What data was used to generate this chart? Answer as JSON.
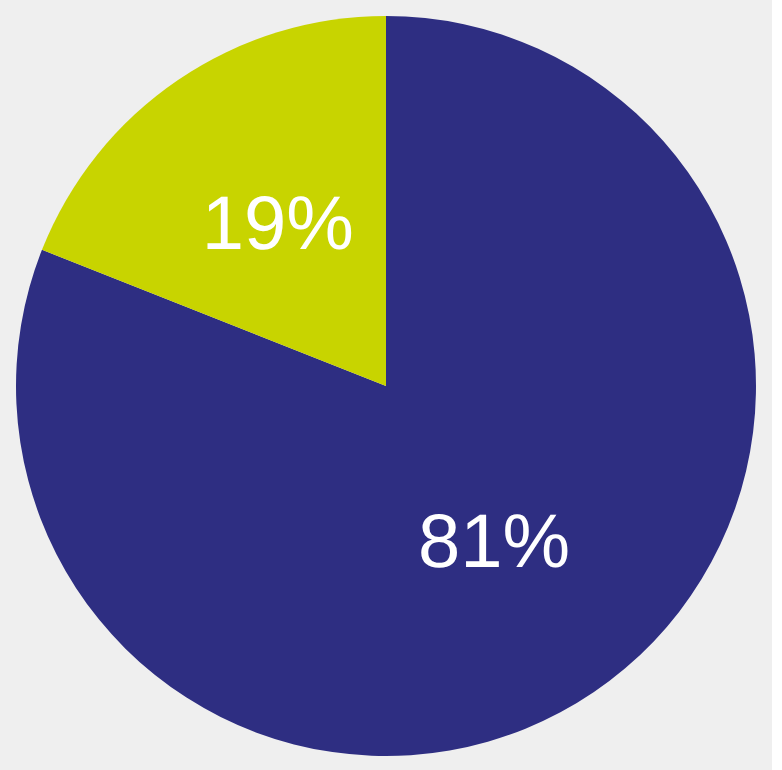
{
  "chart_data": {
    "type": "pie",
    "categories": [
      null,
      null
    ],
    "values": [
      81,
      19
    ],
    "colors": [
      "#2e2e82",
      "#c8d400"
    ],
    "value_labels": [
      "81%",
      "19%"
    ]
  }
}
